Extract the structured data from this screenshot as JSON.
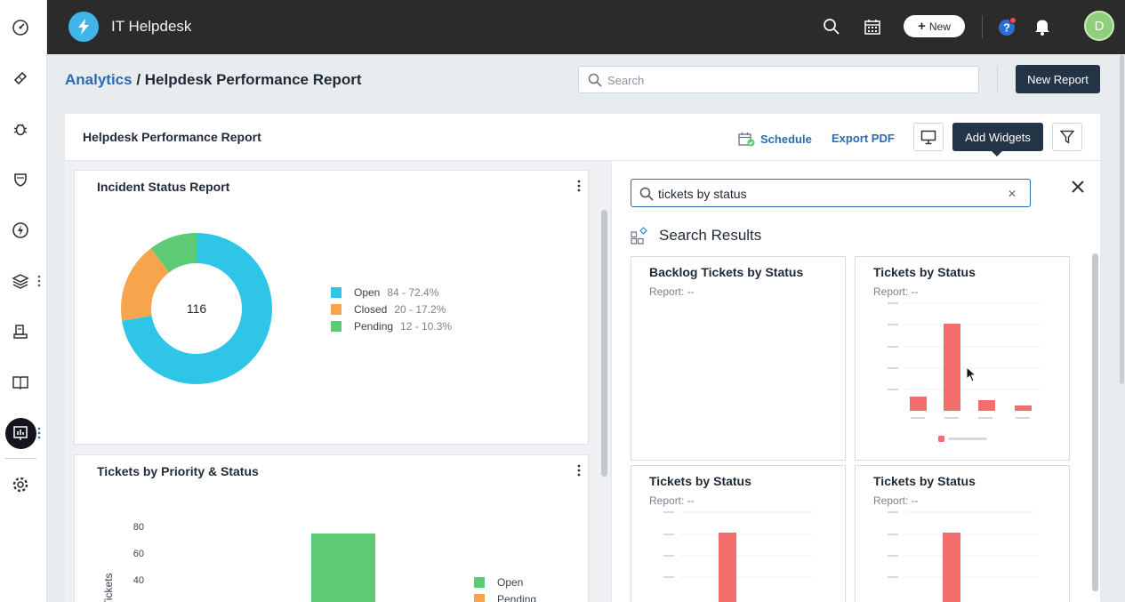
{
  "app": {
    "title": "IT Helpdesk",
    "new_label": "New",
    "avatar_initial": "D"
  },
  "breadcrumb": {
    "parent": "Analytics",
    "separator": " / ",
    "current": "Helpdesk Performance Report"
  },
  "search": {
    "placeholder": "Search"
  },
  "header": {
    "new_report_label": "New Report"
  },
  "report": {
    "title": "Helpdesk Performance Report",
    "schedule_label": "Schedule",
    "export_label": "Export PDF",
    "add_widgets_label": "Add Widgets"
  },
  "widgets": [
    {
      "title": "Incident Status Report",
      "center_value": "116",
      "legend": [
        {
          "label": "Open",
          "value": "84 - 72.4%",
          "color": "#2ec5e6"
        },
        {
          "label": "Closed",
          "value": "20 - 17.2%",
          "color": "#f6a54c"
        },
        {
          "label": "Pending",
          "value": "12 - 10.3%",
          "color": "#5dca76"
        }
      ]
    },
    {
      "title": "Tickets by Priority & Status",
      "y_axis_label": "Tickets",
      "y_ticks": [
        "80",
        "60",
        "40"
      ],
      "legend": [
        {
          "label": "Open",
          "color": "#5dca76"
        },
        {
          "label": "Pending",
          "color": "#f6a54c"
        }
      ]
    }
  ],
  "panel": {
    "search_value": "tickets by status",
    "results_title": "Search Results",
    "cards": [
      {
        "title": "Backlog Tickets by Status",
        "subtitle": "Report: --"
      },
      {
        "title": "Tickets by Status",
        "subtitle": "Report: --"
      },
      {
        "title": "Tickets by Status",
        "subtitle": "Report: --"
      },
      {
        "title": "Tickets by Status",
        "subtitle": "Report: --"
      }
    ]
  },
  "colors": {
    "accent": "#2b6cb0",
    "dark": "#243447",
    "bar": "#f46d6d"
  }
}
